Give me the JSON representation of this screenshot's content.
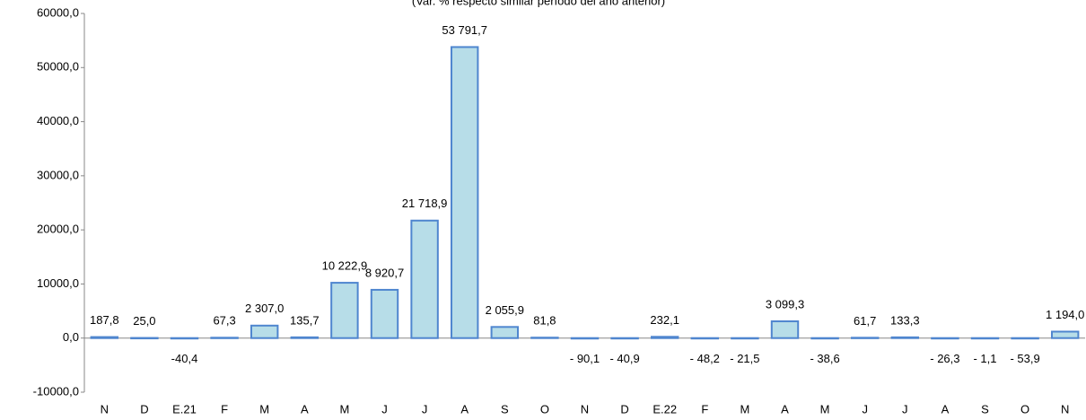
{
  "chart_data": {
    "type": "bar",
    "subtitle": "(Var. % respecto similar período del año anterior)",
    "categories": [
      "N",
      "D",
      "E.21",
      "F",
      "M",
      "A",
      "M",
      "J",
      "J",
      "A",
      "S",
      "O",
      "N",
      "D",
      "E.22",
      "F",
      "M",
      "A",
      "M",
      "J",
      "J",
      "A",
      "S",
      "O",
      "N"
    ],
    "values": [
      187.8,
      25.0,
      -40.4,
      67.3,
      2307.0,
      135.7,
      10222.9,
      8920.7,
      21718.9,
      53791.7,
      2055.9,
      81.8,
      -90.1,
      -40.9,
      232.1,
      -48.2,
      -21.5,
      3099.3,
      -38.6,
      61.7,
      133.3,
      -26.3,
      -1.1,
      -53.9,
      1194.0
    ],
    "value_labels": [
      "187,8",
      "25,0",
      "-40,4",
      "67,3",
      "2 307,0",
      "135,7",
      "10 222,9",
      "8 920,7",
      "21 718,9",
      "53 791,7",
      "2 055,9",
      "81,8",
      "- 90,1",
      "- 40,9",
      "232,1",
      "- 48,2",
      "- 21,5",
      "3 099,3",
      "- 38,6",
      "61,7",
      "133,3",
      "- 26,3",
      "- 1,1",
      "- 53,9",
      "1 194,0"
    ],
    "color": "#b7dde8",
    "ylim": [
      -10000,
      60000
    ],
    "yticks": [
      {
        "value": -10000,
        "label": "-10000,0"
      },
      {
        "value": 0,
        "label": "0,0"
      },
      {
        "value": 10000,
        "label": "10000,0"
      },
      {
        "value": 20000,
        "label": "20000,0"
      },
      {
        "value": 30000,
        "label": "30000,0"
      },
      {
        "value": 40000,
        "label": "40000,0"
      },
      {
        "value": 50000,
        "label": "50000,0"
      },
      {
        "value": 60000,
        "label": "60000,0"
      }
    ],
    "grid": false
  }
}
